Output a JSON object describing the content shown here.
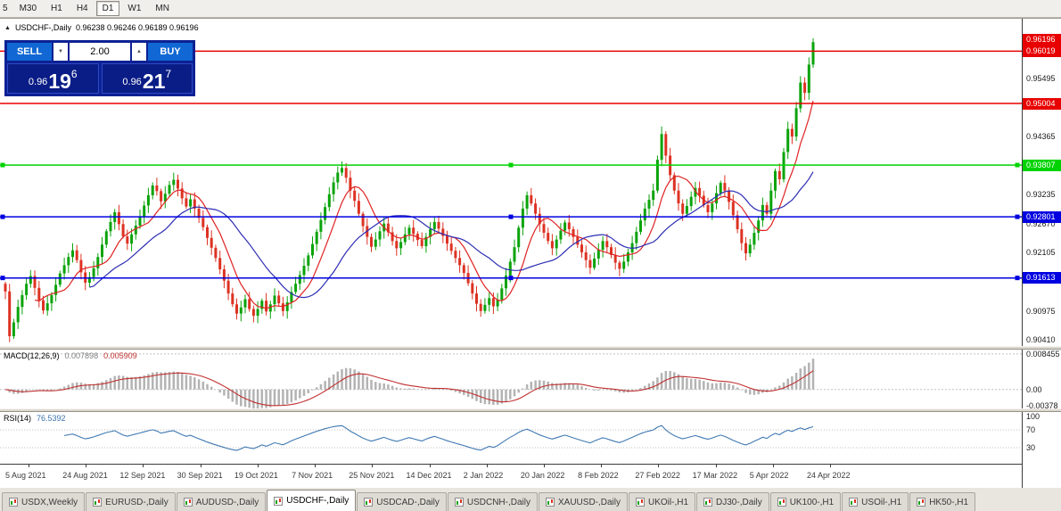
{
  "toolbar": {
    "timeframes": [
      {
        "label": "5",
        "active": false
      },
      {
        "label": "M30",
        "active": false
      },
      {
        "label": "H1",
        "active": false
      },
      {
        "label": "H4",
        "active": false
      },
      {
        "label": "D1",
        "active": true
      },
      {
        "label": "W1",
        "active": false
      },
      {
        "label": "MN",
        "active": false
      }
    ]
  },
  "chart_header": {
    "collapse_glyph": "▲",
    "symbol_title": "USDCHF-,Daily",
    "ohlc_text": "0.96238 0.96246 0.96189 0.96196"
  },
  "trade_panel": {
    "sell_label": "SELL",
    "buy_label": "BUY",
    "volume": "2.00",
    "volume_down_glyph": "▼",
    "volume_up_glyph": "▲",
    "bid": {
      "value": "0.96196",
      "prefix": "0.96",
      "big": "19",
      "sup": "6"
    },
    "ask": {
      "value": "0.96217",
      "prefix": "0.96",
      "big": "21",
      "sup": "7"
    }
  },
  "tabs": [
    {
      "label": "USDX,Weekly",
      "active": false
    },
    {
      "label": "EURUSD-,Daily",
      "active": false
    },
    {
      "label": "AUDUSD-,Daily",
      "active": false
    },
    {
      "label": "USDCHF-,Daily",
      "active": true
    },
    {
      "label": "USDCAD-,Daily",
      "active": false
    },
    {
      "label": "USDCNH-,Daily",
      "active": false
    },
    {
      "label": "XAUUSD-,Daily",
      "active": false
    },
    {
      "label": "UKOil-,H1",
      "active": false
    },
    {
      "label": "DJ30-,Daily",
      "active": false
    },
    {
      "label": "UK100-,H1",
      "active": false
    },
    {
      "label": "USOil-,H1",
      "active": false
    },
    {
      "label": "HK50-,H1",
      "active": false
    }
  ],
  "chart_data": {
    "type": "candlestick",
    "symbol": "USDCHF-",
    "timeframe": "Daily",
    "last_ohlc": {
      "open": 0.96238,
      "high": 0.96246,
      "low": 0.96189,
      "close": 0.96196
    },
    "current_bid": 0.96196,
    "ylim": [
      0.9029,
      0.9665
    ],
    "y_ticks": [
      0.95495,
      0.94365,
      0.93235,
      0.9267,
      0.92105,
      0.90975,
      0.9041
    ],
    "x_labels": [
      "5 Aug 2021",
      "24 Aug 2021",
      "12 Sep 2021",
      "30 Sep 2021",
      "19 Oct 2021",
      "7 Nov 2021",
      "25 Nov 2021",
      "14 Dec 2021",
      "2 Jan 2022",
      "20 Jan 2022",
      "8 Feb 2022",
      "27 Feb 2022",
      "17 Mar 2022",
      "5 Apr 2022",
      "24 Apr 2022"
    ],
    "horizontal_lines": [
      {
        "price": 0.96019,
        "color": "#e80000",
        "handles": false
      },
      {
        "price": 0.95004,
        "color": "#e80000",
        "handles": false
      },
      {
        "price": 0.93807,
        "color": "#00d300",
        "handles": true
      },
      {
        "price": 0.92801,
        "color": "#0000e0",
        "handles": true
      },
      {
        "price": 0.91613,
        "color": "#0000e0",
        "handles": true
      }
    ],
    "colors": {
      "bull": "#0aa30a",
      "bear": "#dd3222",
      "macd_hist": "#b3b3b3",
      "macd_signal": "#c03030",
      "rsi": "#4079b2",
      "current_badge": "#e80000"
    },
    "moving_averages": [
      {
        "period": 8,
        "color": "#e02222"
      },
      {
        "period": 21,
        "color": "#2d2db4"
      }
    ],
    "candles": {
      "first_open": 0.915,
      "closes": [
        0.9135,
        0.9048,
        0.9075,
        0.9105,
        0.9128,
        0.915,
        0.9165,
        0.9142,
        0.9118,
        0.9098,
        0.9112,
        0.9128,
        0.9148,
        0.917,
        0.9186,
        0.9202,
        0.9215,
        0.9196,
        0.9172,
        0.9152,
        0.9163,
        0.918,
        0.9202,
        0.9226,
        0.9252,
        0.927,
        0.9289,
        0.9266,
        0.9242,
        0.9228,
        0.9246,
        0.9263,
        0.9281,
        0.9302,
        0.9322,
        0.9341,
        0.933,
        0.931,
        0.9325,
        0.9342,
        0.9352,
        0.9335,
        0.9316,
        0.93,
        0.9314,
        0.9296,
        0.9278,
        0.926,
        0.9239,
        0.922,
        0.92,
        0.9178,
        0.9156,
        0.9131,
        0.911,
        0.9092,
        0.9104,
        0.912,
        0.9101,
        0.9088,
        0.9101,
        0.9117,
        0.9096,
        0.911,
        0.9127,
        0.9112,
        0.9097,
        0.9114,
        0.9134,
        0.915,
        0.9167,
        0.9185,
        0.9205,
        0.9227,
        0.9251,
        0.9274,
        0.9299,
        0.9324,
        0.9347,
        0.9366,
        0.9375,
        0.9356,
        0.9331,
        0.9311,
        0.9286,
        0.9262,
        0.9241,
        0.9222,
        0.9236,
        0.9252,
        0.9267,
        0.925,
        0.9233,
        0.9219,
        0.9231,
        0.9246,
        0.9259,
        0.9247,
        0.9235,
        0.9223,
        0.9241,
        0.9256,
        0.927,
        0.9257,
        0.9243,
        0.9228,
        0.9214,
        0.92,
        0.9186,
        0.9171,
        0.9151,
        0.9131,
        0.9111,
        0.9097,
        0.9109,
        0.9122,
        0.9106,
        0.9119,
        0.9141,
        0.9166,
        0.9193,
        0.9221,
        0.9259,
        0.9296,
        0.9322,
        0.9306,
        0.9286,
        0.9266,
        0.9249,
        0.9233,
        0.9219,
        0.9236,
        0.9253,
        0.9269,
        0.9256,
        0.9241,
        0.9226,
        0.9211,
        0.9196,
        0.9181,
        0.9199,
        0.9216,
        0.9233,
        0.9221,
        0.9206,
        0.9191,
        0.9179,
        0.9193,
        0.9211,
        0.9229,
        0.9251,
        0.9273,
        0.9296,
        0.9313,
        0.9331,
        0.9391,
        0.9441,
        0.9399,
        0.9361,
        0.9331,
        0.9306,
        0.9286,
        0.9301,
        0.9319,
        0.9336,
        0.9321,
        0.9303,
        0.9289,
        0.9306,
        0.9326,
        0.9346,
        0.9331,
        0.9309,
        0.9283,
        0.9256,
        0.9229,
        0.9209,
        0.9226,
        0.9249,
        0.9273,
        0.9303,
        0.9286,
        0.9331,
        0.9369,
        0.9353,
        0.9406,
        0.9451,
        0.9436,
        0.9491,
        0.9541,
        0.9521,
        0.9576,
        0.96196
      ]
    },
    "macd": {
      "label": "MACD(12,26,9)",
      "display_main": "0.007898",
      "display_signal": "0.005909",
      "params": [
        12,
        26,
        9
      ],
      "ylim": [
        -0.0045,
        0.0095
      ],
      "ticks": [
        {
          "v": 0.008455,
          "label": "0.008455"
        },
        {
          "v": 0,
          "label": "0.00"
        },
        {
          "v": -0.00378,
          "label": "-0.00378"
        }
      ]
    },
    "rsi": {
      "label": "RSI(14)",
      "display_value": "76.5392",
      "period": 14,
      "levels": [
        70,
        30
      ],
      "ticks": [
        {
          "v": 100,
          "label": "100"
        },
        {
          "v": 70,
          "label": "70"
        },
        {
          "v": 30,
          "label": "30"
        }
      ]
    }
  }
}
